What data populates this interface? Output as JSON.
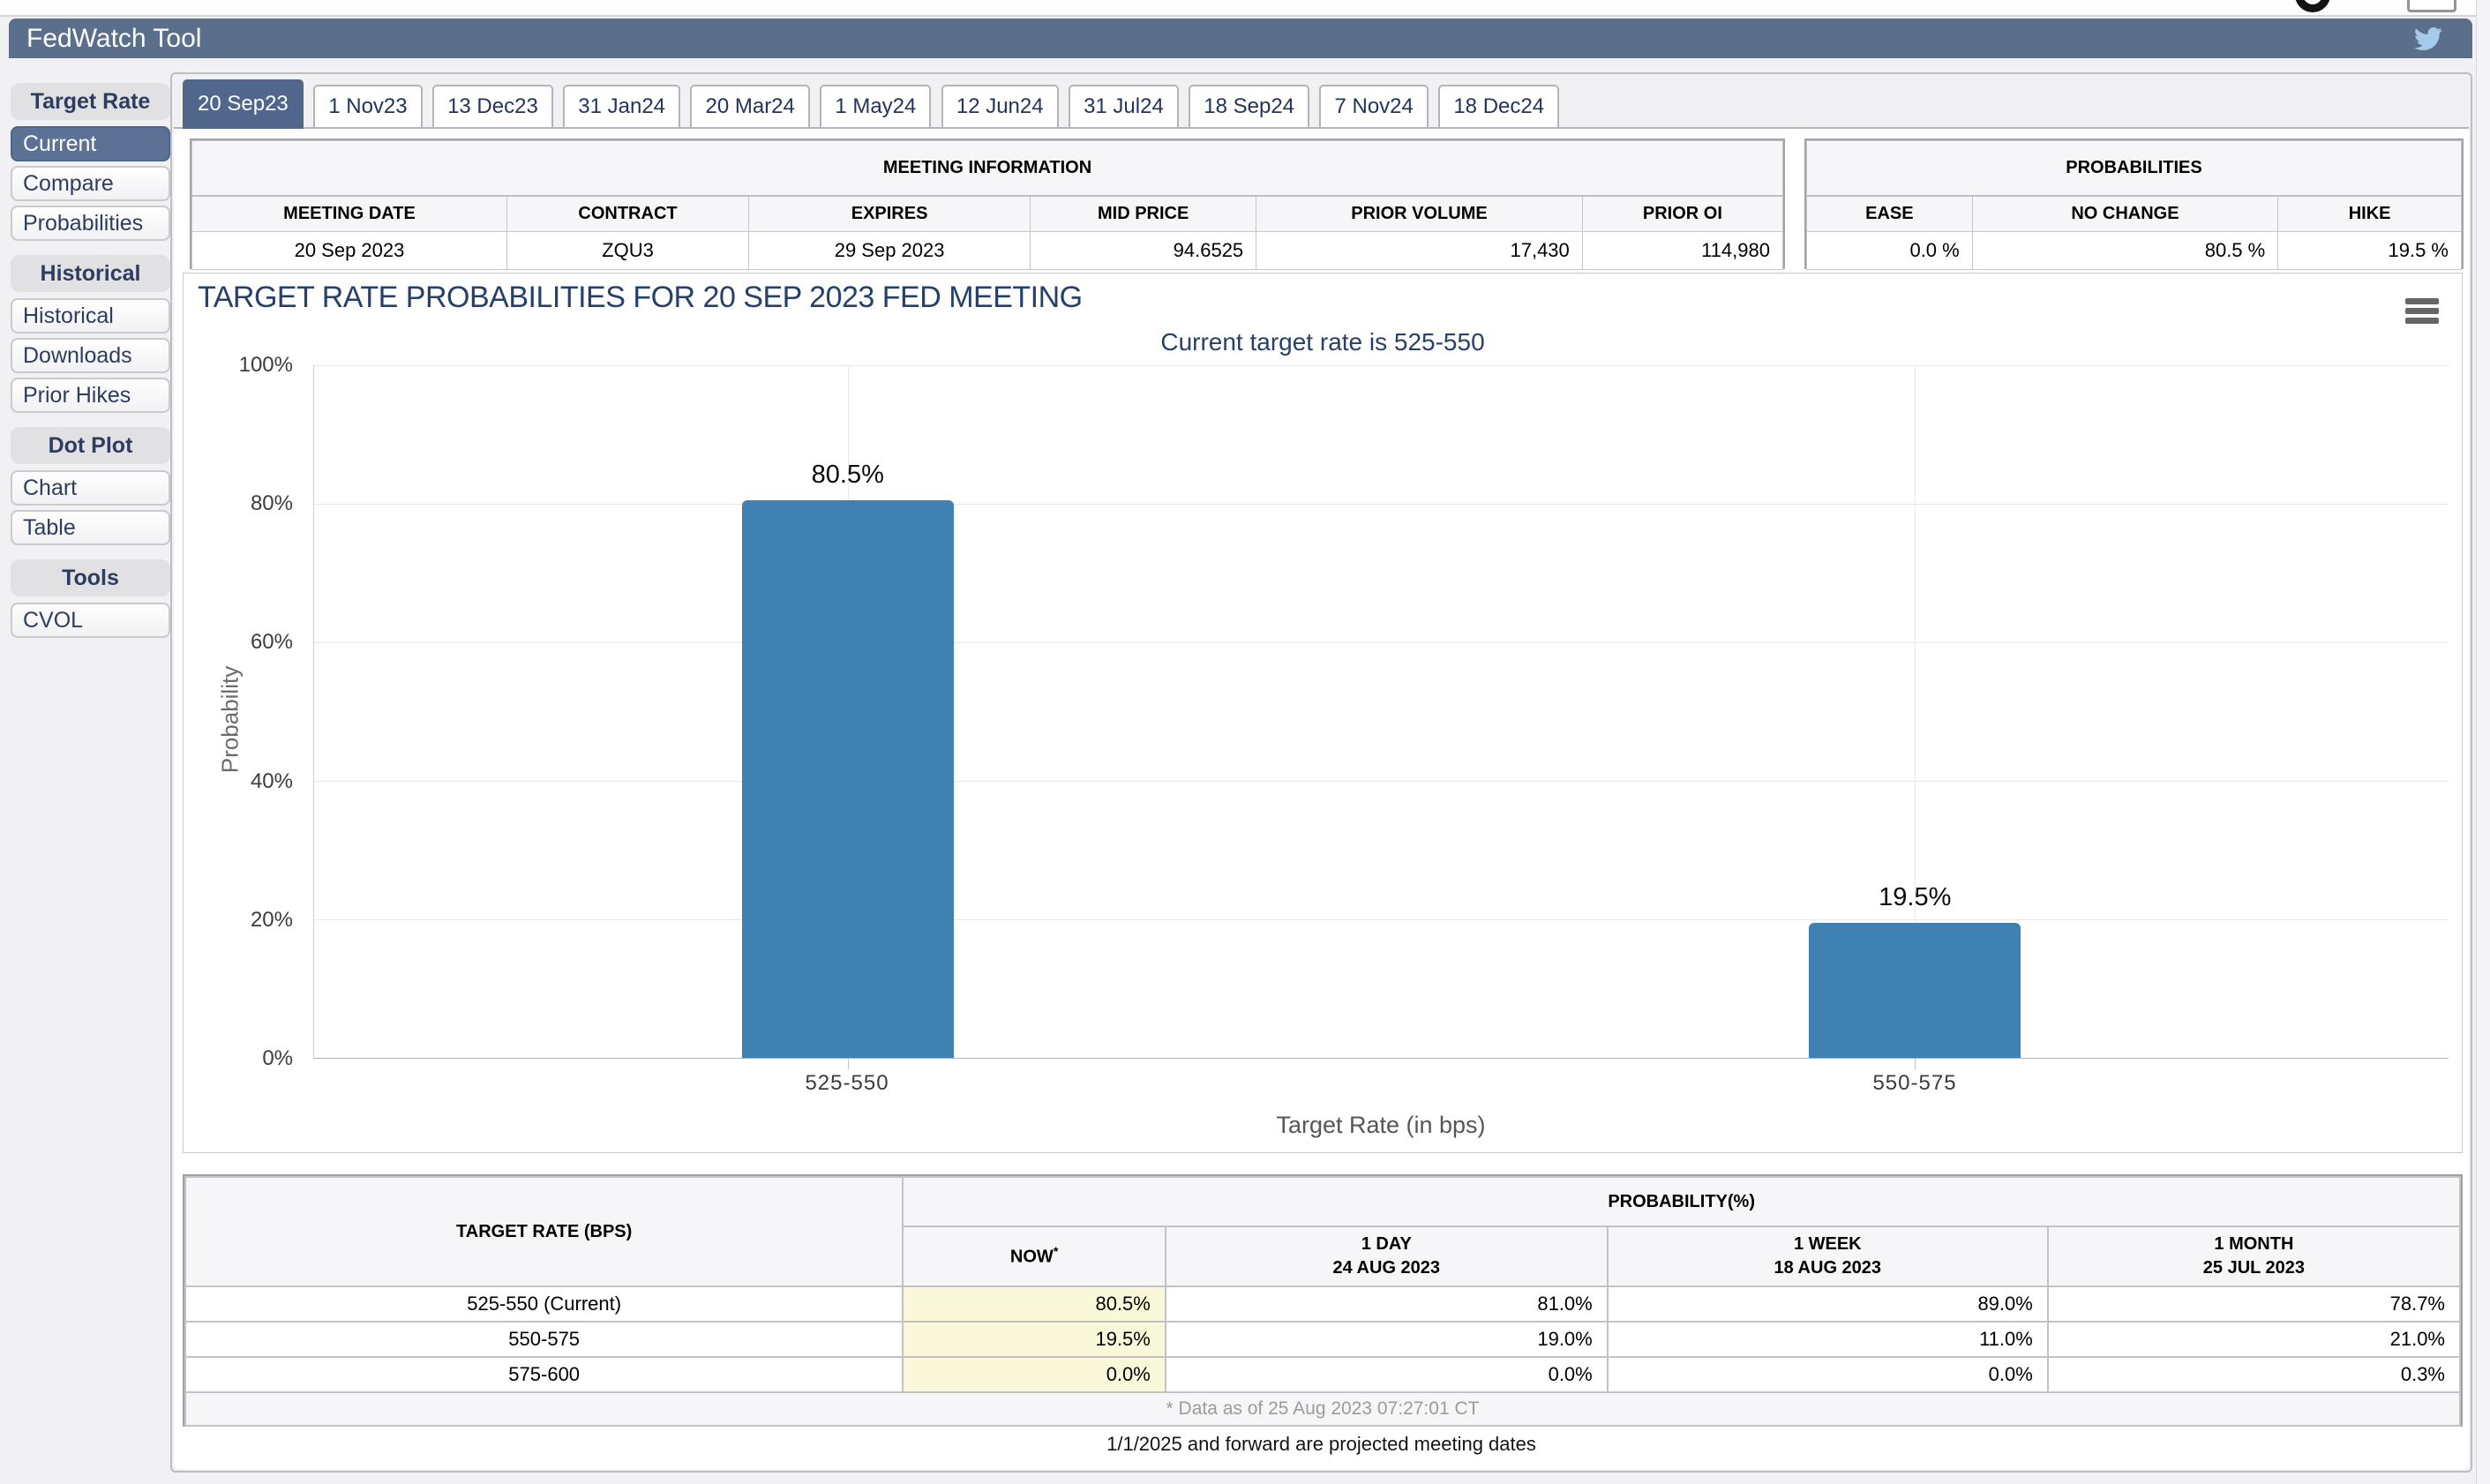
{
  "top_bar": {
    "title": "FedWatch Tool"
  },
  "sidebar": {
    "sections": [
      {
        "header": "Target Rate",
        "items": [
          {
            "label": "Current",
            "selected": true
          },
          {
            "label": "Compare"
          },
          {
            "label": "Probabilities"
          }
        ]
      },
      {
        "header": "Historical",
        "items": [
          {
            "label": "Historical"
          },
          {
            "label": "Downloads"
          },
          {
            "label": "Prior Hikes"
          }
        ]
      },
      {
        "header": "Dot Plot",
        "items": [
          {
            "label": "Chart"
          },
          {
            "label": "Table"
          }
        ]
      },
      {
        "header": "Tools",
        "items": [
          {
            "label": "CVOL"
          }
        ]
      }
    ]
  },
  "tabs": {
    "selected": "20 Sep23",
    "items": [
      "20 Sep23",
      "1 Nov23",
      "13 Dec23",
      "31 Jan24",
      "20 Mar24",
      "1 May24",
      "12 Jun24",
      "31 Jul24",
      "18 Sep24",
      "7 Nov24",
      "18 Dec24"
    ]
  },
  "meeting_information": {
    "title": "MEETING INFORMATION",
    "headers": [
      "MEETING DATE",
      "CONTRACT",
      "EXPIRES",
      "MID PRICE",
      "PRIOR VOLUME",
      "PRIOR OI"
    ],
    "row": [
      "20 Sep 2023",
      "ZQU3",
      "29 Sep 2023",
      "94.6525",
      "17,430",
      "114,980"
    ]
  },
  "probabilities_summary": {
    "title": "PROBABILITIES",
    "headers": [
      "EASE",
      "NO CHANGE",
      "HIKE"
    ],
    "row": [
      "0.0 %",
      "80.5 %",
      "19.5 %"
    ]
  },
  "chart_data": {
    "type": "bar",
    "title": "TARGET RATE PROBABILITIES FOR 20 SEP 2023 FED MEETING",
    "subtitle": "Current target rate is 525-550",
    "categories": [
      "525-550",
      "550-575"
    ],
    "values": [
      80.5,
      19.5
    ],
    "value_labels": [
      "80.5%",
      "19.5%"
    ],
    "xlabel": "Target Rate (in bps)",
    "ylabel": "Probability",
    "ylim": [
      0,
      100
    ],
    "yticks_top_down": [
      "100%",
      "80%",
      "60%",
      "40%",
      "20%",
      "0%"
    ],
    "grid": true,
    "legend": "none",
    "bar_color": "#4081b4",
    "watermark_letter": "Q"
  },
  "probability_table": {
    "corner_header": "TARGET RATE (BPS)",
    "group_header": "PROBABILITY(%)",
    "col_headers": [
      {
        "line1": "NOW",
        "sup": "*",
        "line2": ""
      },
      {
        "line1": "1 DAY",
        "sup": "",
        "line2": "24 AUG 2023"
      },
      {
        "line1": "1 WEEK",
        "sup": "",
        "line2": "18 AUG 2023"
      },
      {
        "line1": "1 MONTH",
        "sup": "",
        "line2": "25 JUL 2023"
      }
    ],
    "rows": [
      {
        "rate": "525-550 (Current)",
        "now": "80.5%",
        "day": "81.0%",
        "week": "89.0%",
        "month": "78.7%"
      },
      {
        "rate": "550-575",
        "now": "19.5%",
        "day": "19.0%",
        "week": "11.0%",
        "month": "21.0%"
      },
      {
        "rate": "575-600",
        "now": "0.0%",
        "day": "0.0%",
        "week": "0.0%",
        "month": "0.3%"
      }
    ],
    "footnote": "* Data as of 25 Aug 2023 07:27:01 CT"
  },
  "footer_note": "1/1/2025 and forward are projected meeting dates",
  "colors": {
    "header_bar": "#5b6e8c",
    "selected_nav": "#5b7294",
    "selected_tab": "#50668b",
    "bar": "#4081b4",
    "now_highlight": "#f9f9d9",
    "title_navy": "#26406c"
  }
}
